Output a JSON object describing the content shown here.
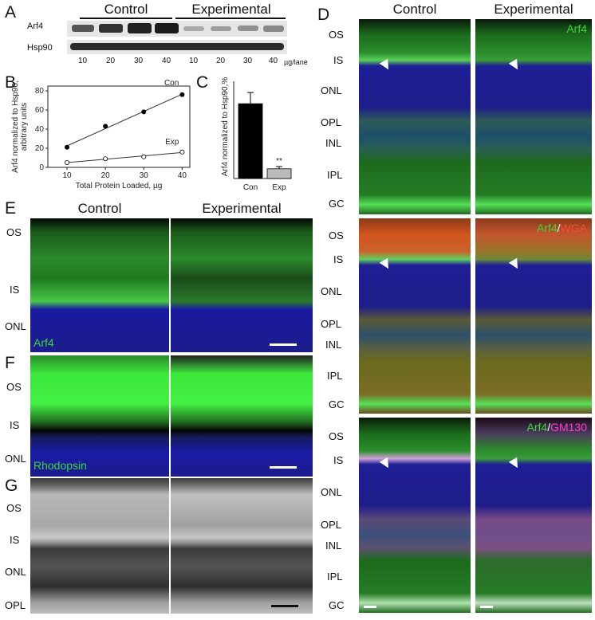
{
  "panels": {
    "A": "A",
    "B": "B",
    "C": "C",
    "D": "D",
    "E": "E",
    "F": "F",
    "G": "G"
  },
  "blot": {
    "groups": [
      "Control",
      "Experimental"
    ],
    "rows": [
      "Arf4",
      "Hsp90"
    ],
    "lanes": [
      "10",
      "20",
      "30",
      "40",
      "10",
      "20",
      "30",
      "40"
    ],
    "unit": "µg/lane"
  },
  "chartB": {
    "chart_data": {
      "type": "scatter",
      "ylabel": "Arf4 normalized to Hsp90, arbitrary units",
      "xlabel": "Total Protein Loaded, µg",
      "xticks": [
        10,
        20,
        30,
        40
      ],
      "yticks": [
        0,
        20,
        40,
        60,
        80
      ],
      "xlim": [
        5,
        42
      ],
      "ylim": [
        0,
        85
      ],
      "series": [
        {
          "name": "Con",
          "x": [
            10,
            20,
            30,
            40
          ],
          "y": [
            21,
            43,
            58,
            76
          ],
          "fill": "#000000"
        },
        {
          "name": "Exp",
          "x": [
            10,
            20,
            30,
            40
          ],
          "y": [
            5,
            9,
            11,
            16
          ],
          "fill": "#ffffff"
        }
      ]
    }
  },
  "chartC": {
    "chart_data": {
      "type": "bar",
      "ylabel": "Arf4 normalized to Hsp90,%",
      "categories": [
        "Con",
        "Exp"
      ],
      "values": [
        100,
        13
      ],
      "errors": [
        15,
        3
      ],
      "colors": [
        "#000000",
        "#bbbbbb"
      ],
      "significance": "**",
      "ylim": [
        0,
        130
      ]
    }
  },
  "panelD": {
    "headers": [
      "Control",
      "Experimental"
    ],
    "layers": [
      "OS",
      "IS",
      "ONL",
      "OPL",
      "INL",
      "IPL",
      "GC"
    ],
    "stains": [
      {
        "a": "Arf4",
        "b": ""
      },
      {
        "a": "Arf4",
        "b": "WGA"
      },
      {
        "a": "Arf4",
        "b": "GM130"
      }
    ]
  },
  "panelE": {
    "headers": [
      "Control",
      "Experimental"
    ],
    "layers": [
      "OS",
      "IS",
      "ONL"
    ],
    "stain": "Arf4"
  },
  "panelF": {
    "layers": [
      "OS",
      "IS",
      "ONL"
    ],
    "stain": "Rhodopsin"
  },
  "panelG": {
    "layers": [
      "OS",
      "IS",
      "ONL",
      "OPL"
    ]
  }
}
